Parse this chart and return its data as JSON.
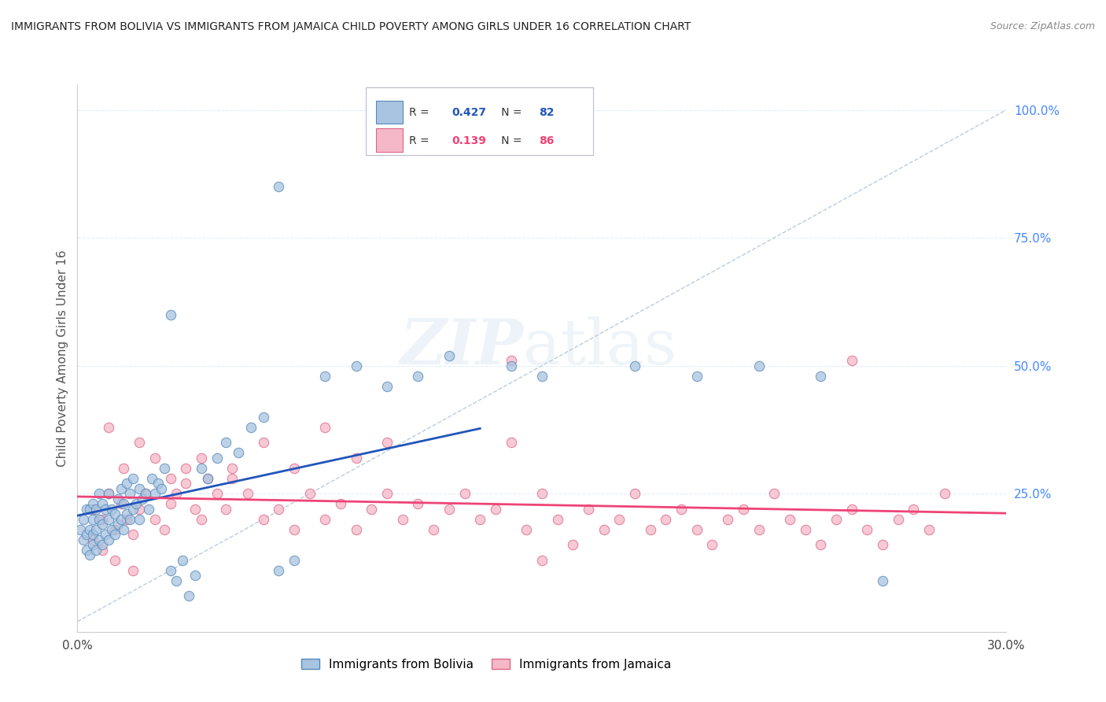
{
  "title": "IMMIGRANTS FROM BOLIVIA VS IMMIGRANTS FROM JAMAICA CHILD POVERTY AMONG GIRLS UNDER 16 CORRELATION CHART",
  "source": "Source: ZipAtlas.com",
  "ylabel": "Child Poverty Among Girls Under 16",
  "xlim": [
    0.0,
    0.3
  ],
  "ylim": [
    -0.02,
    1.05
  ],
  "yticks_right": [
    0.25,
    0.5,
    0.75,
    1.0
  ],
  "ytick_labels_right": [
    "25.0%",
    "50.0%",
    "75.0%",
    "100.0%"
  ],
  "bolivia_color": "#A8C4E0",
  "bolivia_edge_color": "#5588BB",
  "jamaica_color": "#F5B8C8",
  "jamaica_edge_color": "#DD6688",
  "bolivia_R": 0.427,
  "bolivia_N": 82,
  "jamaica_R": 0.139,
  "jamaica_N": 86,
  "trend_bolivia_color": "#2255BB",
  "trend_jamaica_color": "#EE4477",
  "diagonal_color": "#BBCCDD",
  "background_color": "#FFFFFF",
  "grid_color": "#DDEEFF",
  "title_color": "#222222",
  "right_axis_color": "#4488FF",
  "seed": 42,
  "bolivia_x_data": [
    0.001,
    0.002,
    0.002,
    0.003,
    0.003,
    0.003,
    0.004,
    0.004,
    0.004,
    0.005,
    0.005,
    0.005,
    0.005,
    0.006,
    0.006,
    0.006,
    0.007,
    0.007,
    0.007,
    0.008,
    0.008,
    0.008,
    0.009,
    0.009,
    0.01,
    0.01,
    0.01,
    0.011,
    0.011,
    0.012,
    0.012,
    0.013,
    0.013,
    0.014,
    0.014,
    0.015,
    0.015,
    0.016,
    0.016,
    0.017,
    0.017,
    0.018,
    0.018,
    0.019,
    0.02,
    0.02,
    0.021,
    0.022,
    0.023,
    0.024,
    0.025,
    0.026,
    0.027,
    0.028,
    0.03,
    0.032,
    0.034,
    0.036,
    0.038,
    0.04,
    0.042,
    0.045,
    0.048,
    0.052,
    0.056,
    0.06,
    0.065,
    0.07,
    0.08,
    0.09,
    0.1,
    0.11,
    0.12,
    0.14,
    0.15,
    0.18,
    0.2,
    0.22,
    0.24,
    0.26,
    0.065,
    0.03
  ],
  "bolivia_y_data": [
    0.18,
    0.16,
    0.2,
    0.14,
    0.17,
    0.22,
    0.13,
    0.18,
    0.22,
    0.15,
    0.17,
    0.2,
    0.23,
    0.14,
    0.18,
    0.22,
    0.16,
    0.2,
    0.25,
    0.15,
    0.19,
    0.23,
    0.17,
    0.22,
    0.16,
    0.2,
    0.25,
    0.18,
    0.22,
    0.17,
    0.21,
    0.19,
    0.24,
    0.2,
    0.26,
    0.18,
    0.23,
    0.21,
    0.27,
    0.2,
    0.25,
    0.22,
    0.28,
    0.23,
    0.2,
    0.26,
    0.24,
    0.25,
    0.22,
    0.28,
    0.25,
    0.27,
    0.26,
    0.3,
    0.1,
    0.08,
    0.12,
    0.05,
    0.09,
    0.3,
    0.28,
    0.32,
    0.35,
    0.33,
    0.38,
    0.4,
    0.1,
    0.12,
    0.48,
    0.5,
    0.46,
    0.48,
    0.52,
    0.5,
    0.48,
    0.5,
    0.48,
    0.5,
    0.48,
    0.08,
    0.85,
    0.6
  ],
  "jamaica_x_data": [
    0.005,
    0.008,
    0.01,
    0.012,
    0.014,
    0.016,
    0.018,
    0.02,
    0.022,
    0.025,
    0.028,
    0.03,
    0.032,
    0.035,
    0.038,
    0.04,
    0.042,
    0.045,
    0.048,
    0.05,
    0.055,
    0.06,
    0.065,
    0.07,
    0.075,
    0.08,
    0.085,
    0.09,
    0.095,
    0.1,
    0.105,
    0.11,
    0.115,
    0.12,
    0.125,
    0.13,
    0.135,
    0.14,
    0.145,
    0.15,
    0.155,
    0.16,
    0.165,
    0.17,
    0.175,
    0.18,
    0.185,
    0.19,
    0.195,
    0.2,
    0.205,
    0.21,
    0.215,
    0.22,
    0.225,
    0.23,
    0.235,
    0.24,
    0.245,
    0.25,
    0.255,
    0.26,
    0.265,
    0.27,
    0.275,
    0.28,
    0.01,
    0.015,
    0.02,
    0.025,
    0.03,
    0.035,
    0.04,
    0.05,
    0.06,
    0.07,
    0.08,
    0.09,
    0.1,
    0.15,
    0.14,
    0.25,
    0.005,
    0.008,
    0.012,
    0.018
  ],
  "jamaica_y_data": [
    0.22,
    0.2,
    0.25,
    0.18,
    0.23,
    0.2,
    0.17,
    0.22,
    0.25,
    0.2,
    0.18,
    0.23,
    0.25,
    0.27,
    0.22,
    0.2,
    0.28,
    0.25,
    0.22,
    0.3,
    0.25,
    0.2,
    0.22,
    0.18,
    0.25,
    0.2,
    0.23,
    0.18,
    0.22,
    0.25,
    0.2,
    0.23,
    0.18,
    0.22,
    0.25,
    0.2,
    0.22,
    0.35,
    0.18,
    0.25,
    0.2,
    0.15,
    0.22,
    0.18,
    0.2,
    0.25,
    0.18,
    0.2,
    0.22,
    0.18,
    0.15,
    0.2,
    0.22,
    0.18,
    0.25,
    0.2,
    0.18,
    0.15,
    0.2,
    0.22,
    0.18,
    0.15,
    0.2,
    0.22,
    0.18,
    0.25,
    0.38,
    0.3,
    0.35,
    0.32,
    0.28,
    0.3,
    0.32,
    0.28,
    0.35,
    0.3,
    0.38,
    0.32,
    0.35,
    0.12,
    0.51,
    0.51,
    0.16,
    0.14,
    0.12,
    0.1
  ]
}
